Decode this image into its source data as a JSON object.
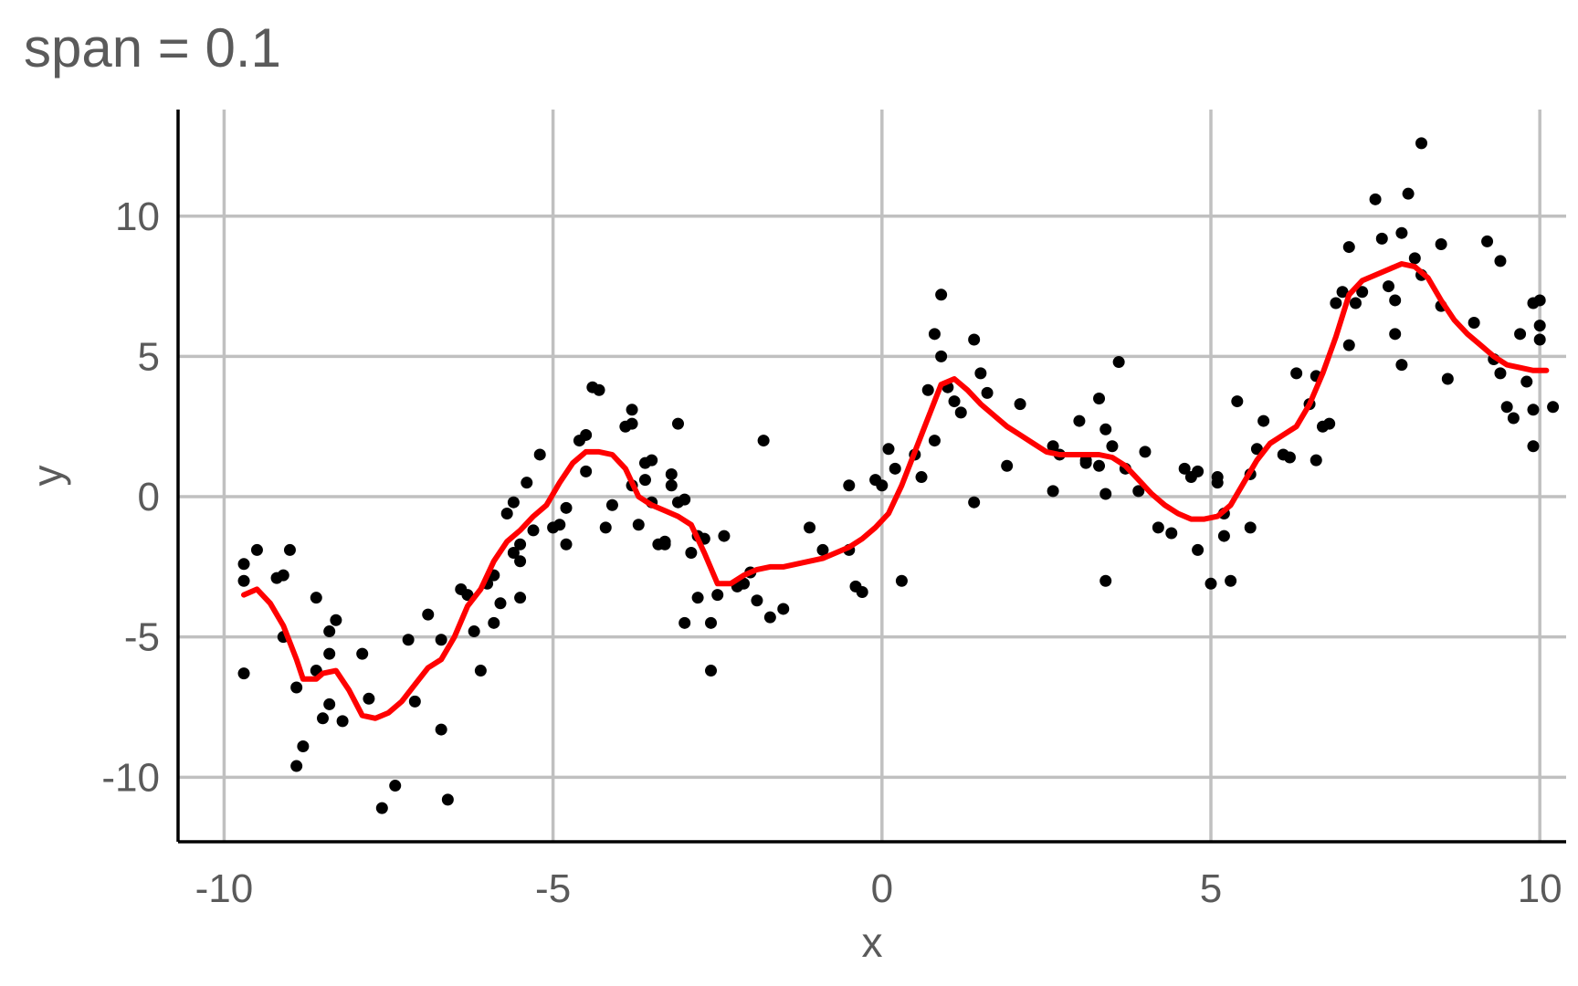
{
  "chart_data": {
    "type": "scatter",
    "title": "span = 0.1",
    "xlabel": "x",
    "ylabel": "y",
    "xlim": [
      -10.7,
      10.4
    ],
    "ylim": [
      -12.3,
      13.8
    ],
    "xticks": [
      -10,
      -5,
      0,
      5,
      10
    ],
    "yticks": [
      -10,
      -5,
      0,
      5,
      10
    ],
    "xtick_labels": [
      "-10",
      "-5",
      "0",
      "5",
      "10"
    ],
    "ytick_labels": [
      "-10",
      "-5",
      "0",
      "5",
      "10"
    ],
    "grid": true,
    "legend": "none",
    "colors": {
      "points": "#000000",
      "line": "#ff0000",
      "grid": "#c0c0c0",
      "axis": "#000000"
    },
    "series": [
      {
        "type": "scatter",
        "points": [
          [
            -9.7,
            -3.0
          ],
          [
            -9.7,
            -2.4
          ],
          [
            -9.5,
            -1.9
          ],
          [
            -9.7,
            -6.3
          ],
          [
            -9.2,
            -2.9
          ],
          [
            -9.1,
            -2.8
          ],
          [
            -9.0,
            -1.9
          ],
          [
            -9.1,
            -5.0
          ],
          [
            -8.9,
            -6.8
          ],
          [
            -8.9,
            -9.6
          ],
          [
            -8.8,
            -8.9
          ],
          [
            -8.6,
            -6.2
          ],
          [
            -8.6,
            -3.6
          ],
          [
            -8.5,
            -7.9
          ],
          [
            -8.4,
            -7.4
          ],
          [
            -8.4,
            -4.8
          ],
          [
            -8.4,
            -5.6
          ],
          [
            -8.3,
            -4.4
          ],
          [
            -8.2,
            -8.0
          ],
          [
            -7.9,
            -5.6
          ],
          [
            -7.8,
            -7.2
          ],
          [
            -7.6,
            -11.1
          ],
          [
            -7.4,
            -10.3
          ],
          [
            -7.2,
            -5.1
          ],
          [
            -7.1,
            -7.3
          ],
          [
            -6.9,
            -4.2
          ],
          [
            -6.7,
            -5.1
          ],
          [
            -6.7,
            -8.3
          ],
          [
            -6.6,
            -10.8
          ],
          [
            -6.4,
            -3.3
          ],
          [
            -6.3,
            -3.5
          ],
          [
            -6.2,
            -4.8
          ],
          [
            -6.1,
            -6.2
          ],
          [
            -6.0,
            -3.1
          ],
          [
            -5.9,
            -2.8
          ],
          [
            -5.9,
            -4.5
          ],
          [
            -5.8,
            -3.8
          ],
          [
            -5.7,
            -0.6
          ],
          [
            -5.6,
            -0.2
          ],
          [
            -5.6,
            -2.0
          ],
          [
            -5.5,
            -1.7
          ],
          [
            -5.5,
            -3.6
          ],
          [
            -5.5,
            -2.3
          ],
          [
            -5.4,
            0.5
          ],
          [
            -5.3,
            -1.2
          ],
          [
            -5.2,
            1.5
          ],
          [
            -5.0,
            -1.1
          ],
          [
            -4.9,
            -1.0
          ],
          [
            -4.8,
            -1.7
          ],
          [
            -4.8,
            -0.4
          ],
          [
            -4.6,
            2.0
          ],
          [
            -4.5,
            2.2
          ],
          [
            -4.5,
            0.9
          ],
          [
            -4.4,
            3.9
          ],
          [
            -4.3,
            3.8
          ],
          [
            -4.2,
            -1.1
          ],
          [
            -4.1,
            -0.3
          ],
          [
            -3.9,
            2.5
          ],
          [
            -3.8,
            2.6
          ],
          [
            -3.8,
            3.1
          ],
          [
            -3.8,
            0.4
          ],
          [
            -3.7,
            -1.0
          ],
          [
            -3.6,
            1.2
          ],
          [
            -3.6,
            0.6
          ],
          [
            -3.5,
            1.3
          ],
          [
            -3.5,
            -0.2
          ],
          [
            -3.4,
            -1.7
          ],
          [
            -3.3,
            -1.7
          ],
          [
            -3.2,
            0.8
          ],
          [
            -3.2,
            0.4
          ],
          [
            -3.3,
            -1.6
          ],
          [
            -3.1,
            -0.2
          ],
          [
            -3.0,
            -0.1
          ],
          [
            -3.1,
            2.6
          ],
          [
            -3.0,
            -4.5
          ],
          [
            -2.9,
            -2.0
          ],
          [
            -2.8,
            -1.4
          ],
          [
            -2.7,
            -1.5
          ],
          [
            -2.8,
            -3.6
          ],
          [
            -2.6,
            -6.2
          ],
          [
            -2.6,
            -4.5
          ],
          [
            -2.5,
            -3.5
          ],
          [
            -2.4,
            -1.4
          ],
          [
            -2.2,
            -3.2
          ],
          [
            -2.1,
            -3.1
          ],
          [
            -2.0,
            -2.7
          ],
          [
            -1.9,
            -3.7
          ],
          [
            -1.8,
            2.0
          ],
          [
            -1.7,
            -4.3
          ],
          [
            -1.5,
            -4.0
          ],
          [
            -1.1,
            -1.1
          ],
          [
            -0.9,
            -1.9
          ],
          [
            -0.5,
            -1.9
          ],
          [
            -0.4,
            -3.2
          ],
          [
            -0.3,
            -3.4
          ],
          [
            -0.5,
            0.4
          ],
          [
            -0.1,
            0.6
          ],
          [
            0.1,
            1.7
          ],
          [
            0.2,
            1.0
          ],
          [
            0.0,
            0.4
          ],
          [
            0.3,
            -3.0
          ],
          [
            0.5,
            1.5
          ],
          [
            0.6,
            0.7
          ],
          [
            0.7,
            3.8
          ],
          [
            0.8,
            2.0
          ],
          [
            0.8,
            5.8
          ],
          [
            0.9,
            5.0
          ],
          [
            0.9,
            7.2
          ],
          [
            1.0,
            3.9
          ],
          [
            1.1,
            3.4
          ],
          [
            1.2,
            3.0
          ],
          [
            1.4,
            5.6
          ],
          [
            1.4,
            -0.2
          ],
          [
            1.5,
            4.4
          ],
          [
            1.6,
            3.7
          ],
          [
            1.9,
            1.1
          ],
          [
            2.1,
            3.3
          ],
          [
            2.6,
            1.8
          ],
          [
            2.6,
            0.2
          ],
          [
            2.7,
            1.5
          ],
          [
            3.0,
            2.7
          ],
          [
            3.1,
            1.3
          ],
          [
            3.1,
            1.2
          ],
          [
            3.3,
            1.1
          ],
          [
            3.3,
            3.5
          ],
          [
            3.4,
            0.1
          ],
          [
            3.4,
            2.4
          ],
          [
            3.5,
            1.8
          ],
          [
            3.4,
            -3.0
          ],
          [
            3.6,
            4.8
          ],
          [
            3.7,
            1.0
          ],
          [
            3.9,
            0.2
          ],
          [
            4.0,
            1.6
          ],
          [
            4.2,
            -1.1
          ],
          [
            4.4,
            -1.3
          ],
          [
            4.6,
            1.0
          ],
          [
            4.7,
            0.7
          ],
          [
            4.8,
            -1.9
          ],
          [
            4.8,
            0.9
          ],
          [
            5.0,
            -3.1
          ],
          [
            5.1,
            0.5
          ],
          [
            5.1,
            0.7
          ],
          [
            5.2,
            -1.4
          ],
          [
            5.3,
            -3.0
          ],
          [
            5.2,
            -0.6
          ],
          [
            5.4,
            3.4
          ],
          [
            5.6,
            0.8
          ],
          [
            5.7,
            1.7
          ],
          [
            5.6,
            -1.1
          ],
          [
            5.8,
            2.7
          ],
          [
            6.1,
            1.5
          ],
          [
            6.2,
            1.4
          ],
          [
            6.3,
            4.4
          ],
          [
            6.5,
            3.3
          ],
          [
            6.6,
            1.3
          ],
          [
            6.6,
            4.3
          ],
          [
            6.7,
            2.5
          ],
          [
            6.8,
            2.6
          ],
          [
            6.9,
            6.9
          ],
          [
            7.0,
            7.3
          ],
          [
            7.1,
            5.4
          ],
          [
            7.1,
            8.9
          ],
          [
            7.2,
            6.9
          ],
          [
            7.3,
            7.3
          ],
          [
            7.5,
            10.6
          ],
          [
            7.6,
            9.2
          ],
          [
            7.7,
            7.5
          ],
          [
            7.8,
            5.8
          ],
          [
            7.8,
            7.0
          ],
          [
            7.9,
            9.4
          ],
          [
            7.9,
            4.7
          ],
          [
            8.0,
            10.8
          ],
          [
            8.1,
            8.5
          ],
          [
            8.2,
            7.9
          ],
          [
            8.2,
            12.6
          ],
          [
            8.5,
            9.0
          ],
          [
            8.5,
            6.8
          ],
          [
            8.6,
            4.2
          ],
          [
            9.0,
            6.2
          ],
          [
            9.2,
            9.1
          ],
          [
            9.3,
            4.9
          ],
          [
            9.4,
            8.4
          ],
          [
            9.4,
            4.4
          ],
          [
            9.5,
            3.2
          ],
          [
            9.6,
            2.8
          ],
          [
            9.7,
            5.8
          ],
          [
            9.8,
            4.1
          ],
          [
            9.9,
            6.9
          ],
          [
            9.9,
            1.8
          ],
          [
            9.9,
            3.1
          ],
          [
            10.0,
            5.6
          ],
          [
            10.0,
            6.1
          ],
          [
            10.0,
            7.0
          ],
          [
            10.2,
            3.2
          ]
        ]
      },
      {
        "type": "line",
        "points": [
          [
            -9.7,
            -3.5
          ],
          [
            -9.5,
            -3.3
          ],
          [
            -9.3,
            -3.8
          ],
          [
            -9.1,
            -4.6
          ],
          [
            -8.9,
            -5.8
          ],
          [
            -8.8,
            -6.5
          ],
          [
            -8.6,
            -6.5
          ],
          [
            -8.5,
            -6.3
          ],
          [
            -8.3,
            -6.2
          ],
          [
            -8.1,
            -6.9
          ],
          [
            -7.9,
            -7.8
          ],
          [
            -7.7,
            -7.9
          ],
          [
            -7.5,
            -7.7
          ],
          [
            -7.3,
            -7.3
          ],
          [
            -7.1,
            -6.7
          ],
          [
            -6.9,
            -6.1
          ],
          [
            -6.7,
            -5.8
          ],
          [
            -6.5,
            -5.0
          ],
          [
            -6.3,
            -3.9
          ],
          [
            -6.1,
            -3.3
          ],
          [
            -5.9,
            -2.3
          ],
          [
            -5.7,
            -1.6
          ],
          [
            -5.5,
            -1.2
          ],
          [
            -5.3,
            -0.7
          ],
          [
            -5.1,
            -0.3
          ],
          [
            -4.9,
            0.5
          ],
          [
            -4.7,
            1.2
          ],
          [
            -4.5,
            1.6
          ],
          [
            -4.3,
            1.6
          ],
          [
            -4.1,
            1.5
          ],
          [
            -3.9,
            1.0
          ],
          [
            -3.7,
            0.0
          ],
          [
            -3.5,
            -0.3
          ],
          [
            -3.3,
            -0.5
          ],
          [
            -3.1,
            -0.7
          ],
          [
            -2.9,
            -1.0
          ],
          [
            -2.7,
            -2.0
          ],
          [
            -2.5,
            -3.1
          ],
          [
            -2.3,
            -3.1
          ],
          [
            -2.1,
            -2.8
          ],
          [
            -1.9,
            -2.6
          ],
          [
            -1.7,
            -2.5
          ],
          [
            -1.5,
            -2.5
          ],
          [
            -1.3,
            -2.4
          ],
          [
            -1.1,
            -2.3
          ],
          [
            -0.9,
            -2.2
          ],
          [
            -0.7,
            -2.0
          ],
          [
            -0.5,
            -1.8
          ],
          [
            -0.3,
            -1.5
          ],
          [
            -0.1,
            -1.1
          ],
          [
            0.1,
            -0.6
          ],
          [
            0.3,
            0.4
          ],
          [
            0.5,
            1.6
          ],
          [
            0.7,
            2.8
          ],
          [
            0.9,
            4.0
          ],
          [
            1.1,
            4.2
          ],
          [
            1.3,
            3.8
          ],
          [
            1.5,
            3.3
          ],
          [
            1.7,
            2.9
          ],
          [
            1.9,
            2.5
          ],
          [
            2.1,
            2.2
          ],
          [
            2.3,
            1.9
          ],
          [
            2.5,
            1.6
          ],
          [
            2.7,
            1.5
          ],
          [
            2.9,
            1.5
          ],
          [
            3.1,
            1.5
          ],
          [
            3.3,
            1.5
          ],
          [
            3.5,
            1.4
          ],
          [
            3.7,
            1.1
          ],
          [
            3.9,
            0.6
          ],
          [
            4.1,
            0.1
          ],
          [
            4.3,
            -0.3
          ],
          [
            4.5,
            -0.6
          ],
          [
            4.7,
            -0.8
          ],
          [
            4.9,
            -0.8
          ],
          [
            5.1,
            -0.7
          ],
          [
            5.3,
            -0.3
          ],
          [
            5.5,
            0.5
          ],
          [
            5.7,
            1.3
          ],
          [
            5.9,
            1.9
          ],
          [
            6.1,
            2.2
          ],
          [
            6.3,
            2.5
          ],
          [
            6.5,
            3.3
          ],
          [
            6.7,
            4.4
          ],
          [
            6.9,
            5.7
          ],
          [
            7.1,
            7.2
          ],
          [
            7.3,
            7.7
          ],
          [
            7.5,
            7.9
          ],
          [
            7.7,
            8.1
          ],
          [
            7.9,
            8.3
          ],
          [
            8.1,
            8.2
          ],
          [
            8.3,
            7.8
          ],
          [
            8.5,
            7.0
          ],
          [
            8.7,
            6.3
          ],
          [
            8.9,
            5.8
          ],
          [
            9.1,
            5.4
          ],
          [
            9.3,
            5.0
          ],
          [
            9.5,
            4.7
          ],
          [
            9.7,
            4.6
          ],
          [
            9.9,
            4.5
          ],
          [
            10.1,
            4.5
          ]
        ]
      }
    ]
  }
}
